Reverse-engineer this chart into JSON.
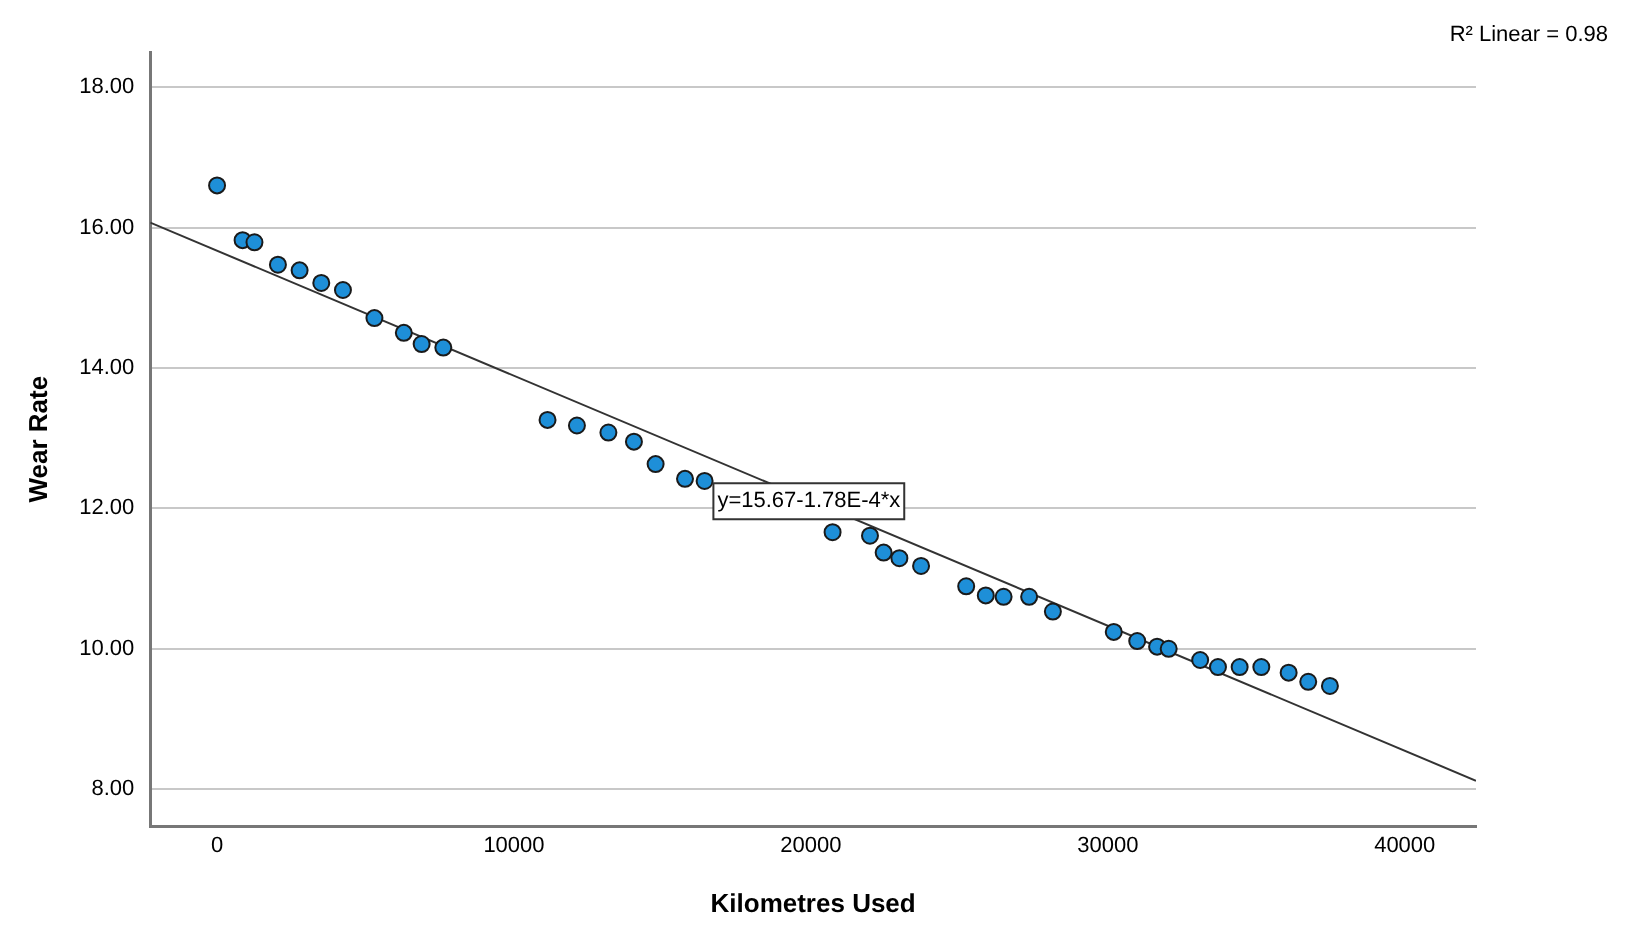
{
  "chart_data": {
    "type": "scatter",
    "xlabel": "Kilometres Used",
    "ylabel": "Wear Rate",
    "annotations": [
      {
        "text": "y=15.67-1.78E-4*x",
        "x": 19930,
        "y": 12.1
      },
      "R² Linear = 0.98"
    ],
    "series": [
      {
        "color": "#1e8fd8",
        "x": [
          0,
          860,
          1260,
          2050,
          2780,
          3510,
          4240,
          5300,
          6290,
          6890,
          7620,
          11130,
          12120,
          13180,
          14040,
          14770,
          15760,
          16420,
          20730,
          21990,
          22450,
          22980,
          23710,
          25230,
          25890,
          26490,
          27350,
          28150,
          30200,
          30990,
          31660,
          32050,
          33110,
          33710,
          34440,
          35170,
          36090,
          36750,
          37480
        ],
        "values": [
          16.6,
          15.82,
          15.79,
          15.47,
          15.39,
          15.21,
          15.11,
          14.71,
          14.5,
          14.34,
          14.29,
          13.26,
          13.18,
          13.08,
          12.95,
          12.63,
          12.42,
          12.39,
          11.66,
          11.61,
          11.37,
          11.29,
          11.18,
          10.89,
          10.76,
          10.74,
          10.74,
          10.53,
          10.24,
          10.11,
          10.03,
          10.0,
          9.84,
          9.74,
          9.74,
          9.74,
          9.66,
          9.53,
          9.47
        ]
      },
      {
        "type": "line",
        "marker": "none",
        "color": "#333333",
        "x": [
          -2250,
          42400
        ],
        "values": [
          16.07,
          8.12
        ]
      }
    ],
    "xlim": [
      -2250,
      42400
    ],
    "xticks": [
      0,
      10000,
      20000,
      30000,
      40000
    ],
    "ylim": [
      7.47,
      18.5
    ],
    "yticks": [
      {
        "value": 8,
        "label": "8.00"
      },
      {
        "value": 10,
        "label": "10.00"
      },
      {
        "value": 12,
        "label": "12.00"
      },
      {
        "value": 14,
        "label": "14.00"
      },
      {
        "value": 16,
        "label": "16.00"
      },
      {
        "value": 18,
        "label": "18.00"
      }
    ],
    "grid": "y",
    "legend": false,
    "marker": "circle"
  }
}
